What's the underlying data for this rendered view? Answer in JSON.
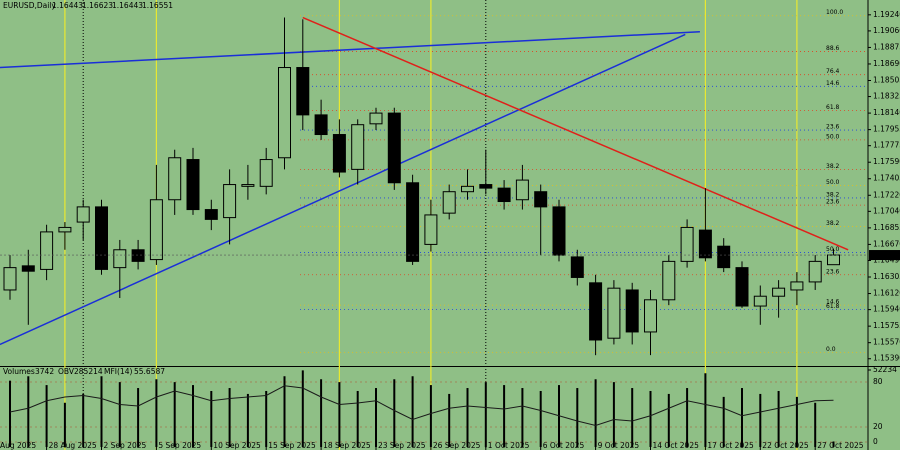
{
  "chart_data": {
    "type": "candlestick",
    "symbol": "EURUSD,Daily",
    "x_edge_label": "Aug 2025",
    "x": [
      null,
      null,
      "28 Aug 2025",
      null,
      null,
      "2 Sep 2025",
      null,
      null,
      "5 Sep 2025",
      null,
      null,
      "10 Sep 2025",
      null,
      null,
      "15 Sep 2025",
      null,
      null,
      "18 Sep 2025",
      null,
      null,
      "23 Sep 2025",
      null,
      null,
      "26 Sep 2025",
      null,
      null,
      "1 Oct 2025",
      null,
      null,
      "6 Oct 2025",
      null,
      null,
      "9 Oct 2025",
      null,
      null,
      "14 Oct 2025",
      null,
      null,
      "17 Oct 2025",
      null,
      null,
      "22 Oct 2025",
      null,
      null,
      "27 Oct 2025",
      null
    ],
    "open": [
      1.1616,
      1.1643,
      1.1639,
      1.1681,
      1.1692,
      1.1709,
      1.1641,
      1.1661,
      1.165,
      1.1717,
      1.1762,
      1.1706,
      1.1697,
      1.1732,
      1.1732,
      1.1764,
      1.1865,
      1.1812,
      1.179,
      1.1751,
      1.1802,
      1.1814,
      1.1736,
      1.1667,
      1.1702,
      1.1726,
      1.1734,
      1.173,
      1.1717,
      1.1726,
      1.1709,
      1.1653,
      1.1624,
      1.1562,
      1.1616,
      1.1569,
      1.1605,
      1.1648,
      1.1683,
      1.1665,
      1.1641,
      1.1598,
      1.1609,
      1.1616,
      1.1625,
      1.16443
    ],
    "high": [
      1.1655,
      1.1661,
      1.1689,
      1.1692,
      1.1717,
      1.1717,
      1.1672,
      1.1672,
      1.1756,
      1.1773,
      1.1775,
      1.1717,
      1.1751,
      1.1756,
      1.1775,
      1.1921,
      1.1919,
      1.1829,
      1.1807,
      1.1807,
      1.182,
      1.182,
      1.1745,
      1.1717,
      1.1734,
      1.1751,
      1.1773,
      1.1739,
      1.1756,
      1.1734,
      1.1717,
      1.1661,
      1.1633,
      1.1627,
      1.1624,
      1.1616,
      1.1655,
      1.1695,
      1.173,
      1.1674,
      1.1648,
      1.1621,
      1.1627,
      1.1636,
      1.1655,
      1.16623
    ],
    "low": [
      1.1605,
      1.1577,
      1.1627,
      1.1661,
      1.1672,
      1.1633,
      1.1607,
      1.1639,
      1.1644,
      1.17,
      1.17,
      1.1683,
      1.1667,
      1.1717,
      1.1723,
      1.1751,
      1.1795,
      1.1784,
      1.1742,
      1.1734,
      1.1795,
      1.1728,
      1.1644,
      1.1659,
      1.1695,
      1.1717,
      1.1723,
      1.1706,
      1.1706,
      1.1655,
      1.1648,
      1.1621,
      1.1543,
      1.1555,
      1.1555,
      1.1543,
      1.1599,
      1.1641,
      1.1648,
      1.1636,
      1.1596,
      1.1577,
      1.1585,
      1.1599,
      1.1616,
      1.16443
    ],
    "close": [
      1.1641,
      1.1637,
      1.1681,
      1.1686,
      1.1709,
      1.1639,
      1.1661,
      1.1648,
      1.1717,
      1.1764,
      1.1706,
      1.1695,
      1.1734,
      1.1734,
      1.1762,
      1.1865,
      1.1812,
      1.179,
      1.1748,
      1.1801,
      1.1814,
      1.1736,
      1.1648,
      1.17,
      1.1726,
      1.1732,
      1.173,
      1.1715,
      1.1739,
      1.1709,
      1.1655,
      1.163,
      1.156,
      1.1618,
      1.1569,
      1.1605,
      1.1648,
      1.1686,
      1.1652,
      1.1641,
      1.1598,
      1.1609,
      1.1618,
      1.1625,
      1.1648,
      1.16551
    ],
    "ylim": [
      1.1532,
      1.1935
    ],
    "yticks": [
      {
        "value": 1.1924,
        "label": "1.19240"
      },
      {
        "value": 1.1906,
        "label": "1.19060"
      },
      1.18875,
      {
        "value": 1.1869,
        "label": "1.18690"
      },
      1.18505,
      1.18325,
      {
        "value": 1.1814,
        "label": "1.18140"
      },
      1.17955,
      1.17775,
      {
        "value": 1.1759,
        "label": "1.17590"
      },
      1.17405,
      {
        "value": 1.1722,
        "label": "1.17220"
      },
      {
        "value": 1.1704,
        "label": "1.17040"
      },
      1.16855,
      {
        "value": 1.1667,
        "label": "1.16670"
      },
      {
        "value": 1.1649,
        "label": "1.16490"
      },
      1.16305,
      {
        "value": 1.1612,
        "label": "1.16120"
      },
      {
        "value": 1.1594,
        "label": "1.15940"
      },
      1.15755,
      {
        "value": 1.1557,
        "label": "1.15570"
      },
      {
        "value": 1.1539,
        "label": "1.15390"
      }
    ],
    "background": "#8fbf86",
    "bull_color": "#8fbf86",
    "bear_color": "#000000",
    "friday_lines": [
      3,
      8,
      18,
      23,
      38,
      43
    ],
    "month_separators": [
      4,
      26
    ],
    "trendlines": [
      {
        "color": "#1a2ed8",
        "start": [
          -0.55,
          1.1865
        ],
        "end": [
          37.7,
          1.1905
        ]
      },
      {
        "color": "#1a2ed8",
        "start": [
          -0.55,
          1.1555
        ],
        "end": [
          36.9,
          1.1902
        ]
      },
      {
        "color": "#e0201a",
        "start": [
          16,
          1.1921
        ],
        "end": [
          45.8,
          1.1661
        ]
      }
    ],
    "fib_levels": [
      {
        "label": "100.0",
        "price": 1.1923,
        "color": "#e0c020"
      },
      {
        "label": "88.6",
        "price": 1.1883,
        "color": "#e04020"
      },
      {
        "label": "76.4",
        "price": 1.1857,
        "color": "#e04020"
      },
      {
        "label": "14.6",
        "price": 1.1844,
        "color": "#2040e0"
      },
      {
        "label": "61.8",
        "price": 1.1817,
        "color": "#e04020"
      },
      {
        "label": "23.6",
        "price": 1.1795,
        "color": "#2040e0"
      },
      {
        "label": "50.0",
        "price": 1.1784,
        "color": "#e04020"
      },
      {
        "label": "38.2",
        "price": 1.1751,
        "color": "#e04020"
      },
      {
        "label": "50.0",
        "price": 1.1733,
        "color": "#e0c020"
      },
      {
        "label": "38.2",
        "price": 1.1719,
        "color": "#2040e0"
      },
      {
        "label": "23.6",
        "price": 1.1711,
        "color": "#e04020"
      },
      {
        "label": "38.2",
        "price": 1.1687,
        "color": "#e0c020"
      },
      {
        "label": "50.0",
        "price": 1.1658,
        "color": "#2040e0"
      },
      {
        "label": "23.6",
        "price": 1.1633,
        "color": "#e04020"
      },
      {
        "label": "14.6",
        "price": 1.1599,
        "color": "#e0c020"
      },
      {
        "label": "61.8",
        "price": 1.1594,
        "color": "#2040e0"
      },
      {
        "label": "0.0",
        "price": 1.1546,
        "color": "#e0c020"
      }
    ],
    "indicator": {
      "volumes_label": "Volumes",
      "obv_label": "OBV",
      "obv_value": 285214,
      "mfi_label": "MFI(14)",
      "volume": [
        45000,
        48000,
        42000,
        30000,
        36000,
        48000,
        44000,
        40000,
        46000,
        44000,
        42000,
        38000,
        40000,
        36000,
        38000,
        48000,
        52000,
        46000,
        44000,
        38000,
        40000,
        46000,
        48000,
        42000,
        36000,
        40000,
        44000,
        42000,
        40000,
        38000,
        42000,
        40000,
        46000,
        44000,
        40000,
        38000,
        36000,
        40000,
        50000,
        34000,
        40000,
        36000,
        38000,
        34000,
        30000,
        3742
      ],
      "volume_color": "#000000",
      "mfi": [
        40,
        45,
        55,
        60,
        62,
        58,
        50,
        48,
        60,
        68,
        62,
        55,
        58,
        60,
        62,
        75,
        72,
        60,
        50,
        52,
        55,
        42,
        30,
        38,
        45,
        48,
        46,
        44,
        48,
        42,
        35,
        28,
        22,
        30,
        28,
        35,
        45,
        55,
        50,
        45,
        35,
        40,
        45,
        50,
        55,
        55.6587
      ],
      "mfi_color": "#1a1a1a",
      "vol_ylim": [
        0,
        52234
      ],
      "vol_ticks": [
        52234
      ],
      "mfi_ylim": [
        0,
        100
      ],
      "mfi_ticks": [
        80,
        20,
        0
      ]
    }
  }
}
